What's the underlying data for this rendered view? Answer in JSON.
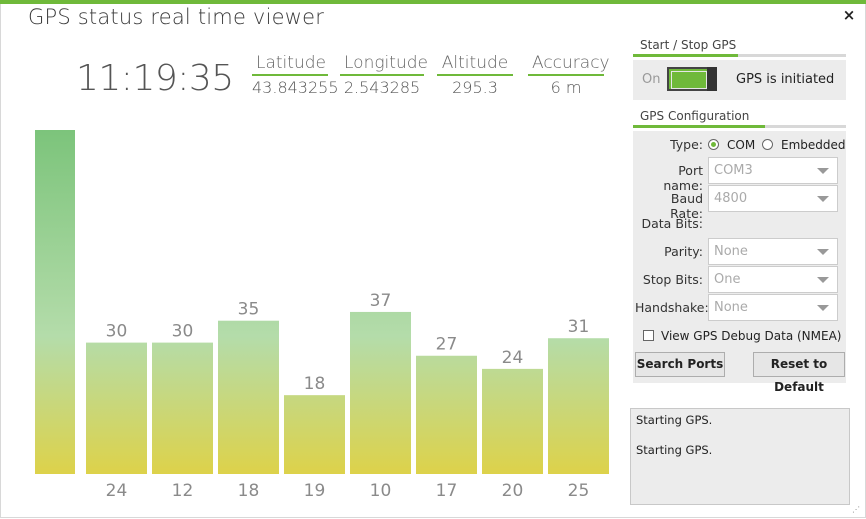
{
  "window": {
    "title": "GPS status real time viewer",
    "close_glyph": "×"
  },
  "clock": "11:19:35",
  "stats": [
    {
      "label": "Latitude",
      "value": "43.843255"
    },
    {
      "label": "Longitude",
      "value": "2.543285"
    },
    {
      "label": "Altitude",
      "value": "295.3"
    },
    {
      "label": "Accuracy",
      "value": "6 m"
    }
  ],
  "chart_data": {
    "type": "bar",
    "categories": [
      "",
      "24",
      "12",
      "18",
      "19",
      "10",
      "17",
      "20",
      "25"
    ],
    "values": [
      null,
      30,
      30,
      35,
      18,
      37,
      27,
      24,
      31
    ],
    "first_bar_level": 1.0,
    "colors": {
      "top": "#7cc47b",
      "mid": "#b4dcaa",
      "bottom": "#ddd24a"
    }
  },
  "startstop": {
    "title": "Start / Stop GPS",
    "on_label": "On",
    "status": "GPS is initiated"
  },
  "config": {
    "title": "GPS Configuration",
    "type_label": "Type:",
    "type_com": "COM",
    "type_embedded": "Embedded",
    "port_label": "Port name:",
    "port_value": "COM3",
    "baud_label": "Baud Rate:",
    "baud_value": "4800",
    "databits_label": "Data Bits:",
    "parity_label": "Parity:",
    "parity_value": "None",
    "stopbits_label": "Stop Bits:",
    "stopbits_value": "One",
    "handshake_label": "Handshake:",
    "handshake_value": "None",
    "debug_label": "View GPS Debug Data (NMEA)",
    "search_button": "Search Ports",
    "reset_button": "Reset to Default"
  },
  "log": [
    "Starting GPS.",
    "Starting GPS."
  ],
  "accent_color": "#6fb93a"
}
